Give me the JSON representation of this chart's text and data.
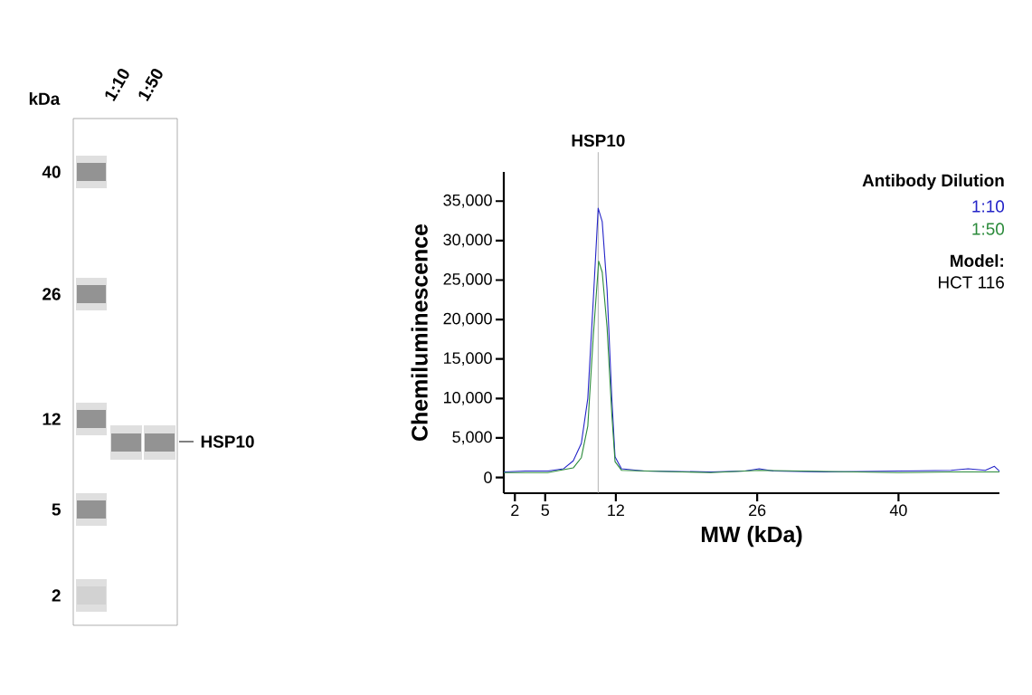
{
  "chart_data": [
    {
      "type": "other",
      "ylabel": "kDa",
      "categories": [
        "1:10",
        "1:50"
      ],
      "annotations": [
        "40",
        "26",
        "12",
        "5",
        "2",
        "HSP10"
      ]
    },
    {
      "type": "line",
      "xlabel": "MW (kDa)",
      "ylabel": "Chemiluminescence",
      "legend_title": "Antibody Dilution",
      "legend": "top right",
      "xlim": [
        0.9,
        50
      ],
      "xticks": [
        2,
        5,
        12,
        26,
        40
      ],
      "ylim": [
        -2000,
        38700
      ],
      "yticks": [
        0,
        {
          "value": 5000,
          "label": "5,000"
        },
        {
          "value": 10000,
          "label": "10,000"
        },
        {
          "value": 15000,
          "label": "15,000"
        },
        {
          "value": 20000,
          "label": "20,000"
        },
        {
          "value": 25000,
          "label": "25,000"
        },
        {
          "value": 30000,
          "label": "30,000"
        },
        {
          "value": 35000,
          "label": "35,000"
        }
      ],
      "ref_lines": [
        {
          "axis": "x",
          "value": 10.25,
          "label": "HSP10",
          "color": "#a0a0a0"
        }
      ],
      "annotations": [
        "Model:",
        "HCT 116"
      ],
      "series": [
        {
          "name": "1:10",
          "color": "#2424c8",
          "x": [
            0.9,
            3.06,
            4.08,
            5.24,
            6.83,
            7.78,
            8.58,
            9.22,
            9.77,
            10.25,
            10.65,
            11.13,
            11.6,
            11.92,
            12.56,
            14.8,
            21.4,
            24.8,
            26.2,
            27.6,
            32.7,
            40,
            45.2,
            46.9,
            48.6,
            49.5,
            50
          ],
          "values": [
            700,
            800,
            800,
            800,
            1100,
            2100,
            4300,
            10000,
            22600,
            34100,
            32400,
            23800,
            10000,
            2600,
            1100,
            800,
            700,
            800,
            1100,
            800,
            700,
            800,
            900,
            1100,
            900,
            1400,
            800
          ]
        },
        {
          "name": "1:50",
          "color": "#2a8a3a",
          "x": [
            0.9,
            5.24,
            7.78,
            8.58,
            9.22,
            9.77,
            10.3,
            10.65,
            11.13,
            11.6,
            11.92,
            12.56,
            21.4,
            26.2,
            40,
            45.2,
            50
          ],
          "values": [
            600,
            600,
            1200,
            2500,
            6500,
            18000,
            27400,
            26000,
            19000,
            8000,
            2000,
            900,
            600,
            900,
            600,
            700,
            700
          ]
        }
      ]
    }
  ]
}
